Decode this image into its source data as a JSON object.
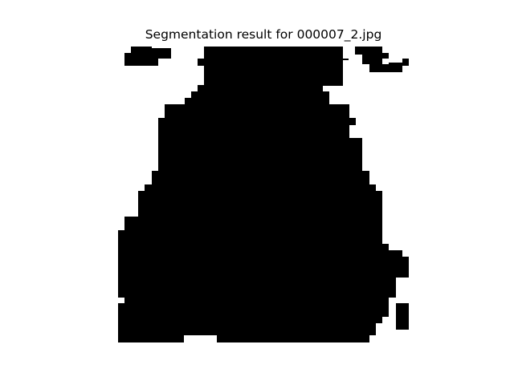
{
  "title": "Segmentation result for 000007_2.jpg",
  "colors": {
    "background": "#ffffff",
    "foreground": "#000000"
  }
}
